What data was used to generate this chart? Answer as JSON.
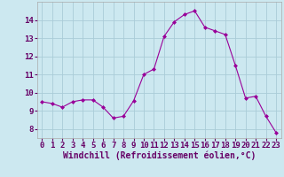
{
  "x": [
    0,
    1,
    2,
    3,
    4,
    5,
    6,
    7,
    8,
    9,
    10,
    11,
    12,
    13,
    14,
    15,
    16,
    17,
    18,
    19,
    20,
    21,
    22,
    23
  ],
  "y": [
    9.5,
    9.4,
    9.2,
    9.5,
    9.6,
    9.6,
    9.2,
    8.6,
    8.7,
    9.55,
    11.0,
    11.3,
    13.1,
    13.9,
    14.3,
    14.5,
    13.6,
    13.4,
    13.2,
    11.5,
    9.7,
    9.8,
    8.7,
    7.8
  ],
  "line_color": "#990099",
  "marker": "D",
  "marker_size": 2,
  "bg_color": "#cce8f0",
  "grid_color": "#aaccd8",
  "xlabel": "Windchill (Refroidissement éolien,°C)",
  "xlabel_fontsize": 7,
  "tick_fontsize": 6.5,
  "xlim": [
    -0.5,
    23.5
  ],
  "ylim": [
    7.5,
    15.0
  ],
  "yticks": [
    8,
    9,
    10,
    11,
    12,
    13,
    14
  ],
  "xticks": [
    0,
    1,
    2,
    3,
    4,
    5,
    6,
    7,
    8,
    9,
    10,
    11,
    12,
    13,
    14,
    15,
    16,
    17,
    18,
    19,
    20,
    21,
    22,
    23
  ]
}
